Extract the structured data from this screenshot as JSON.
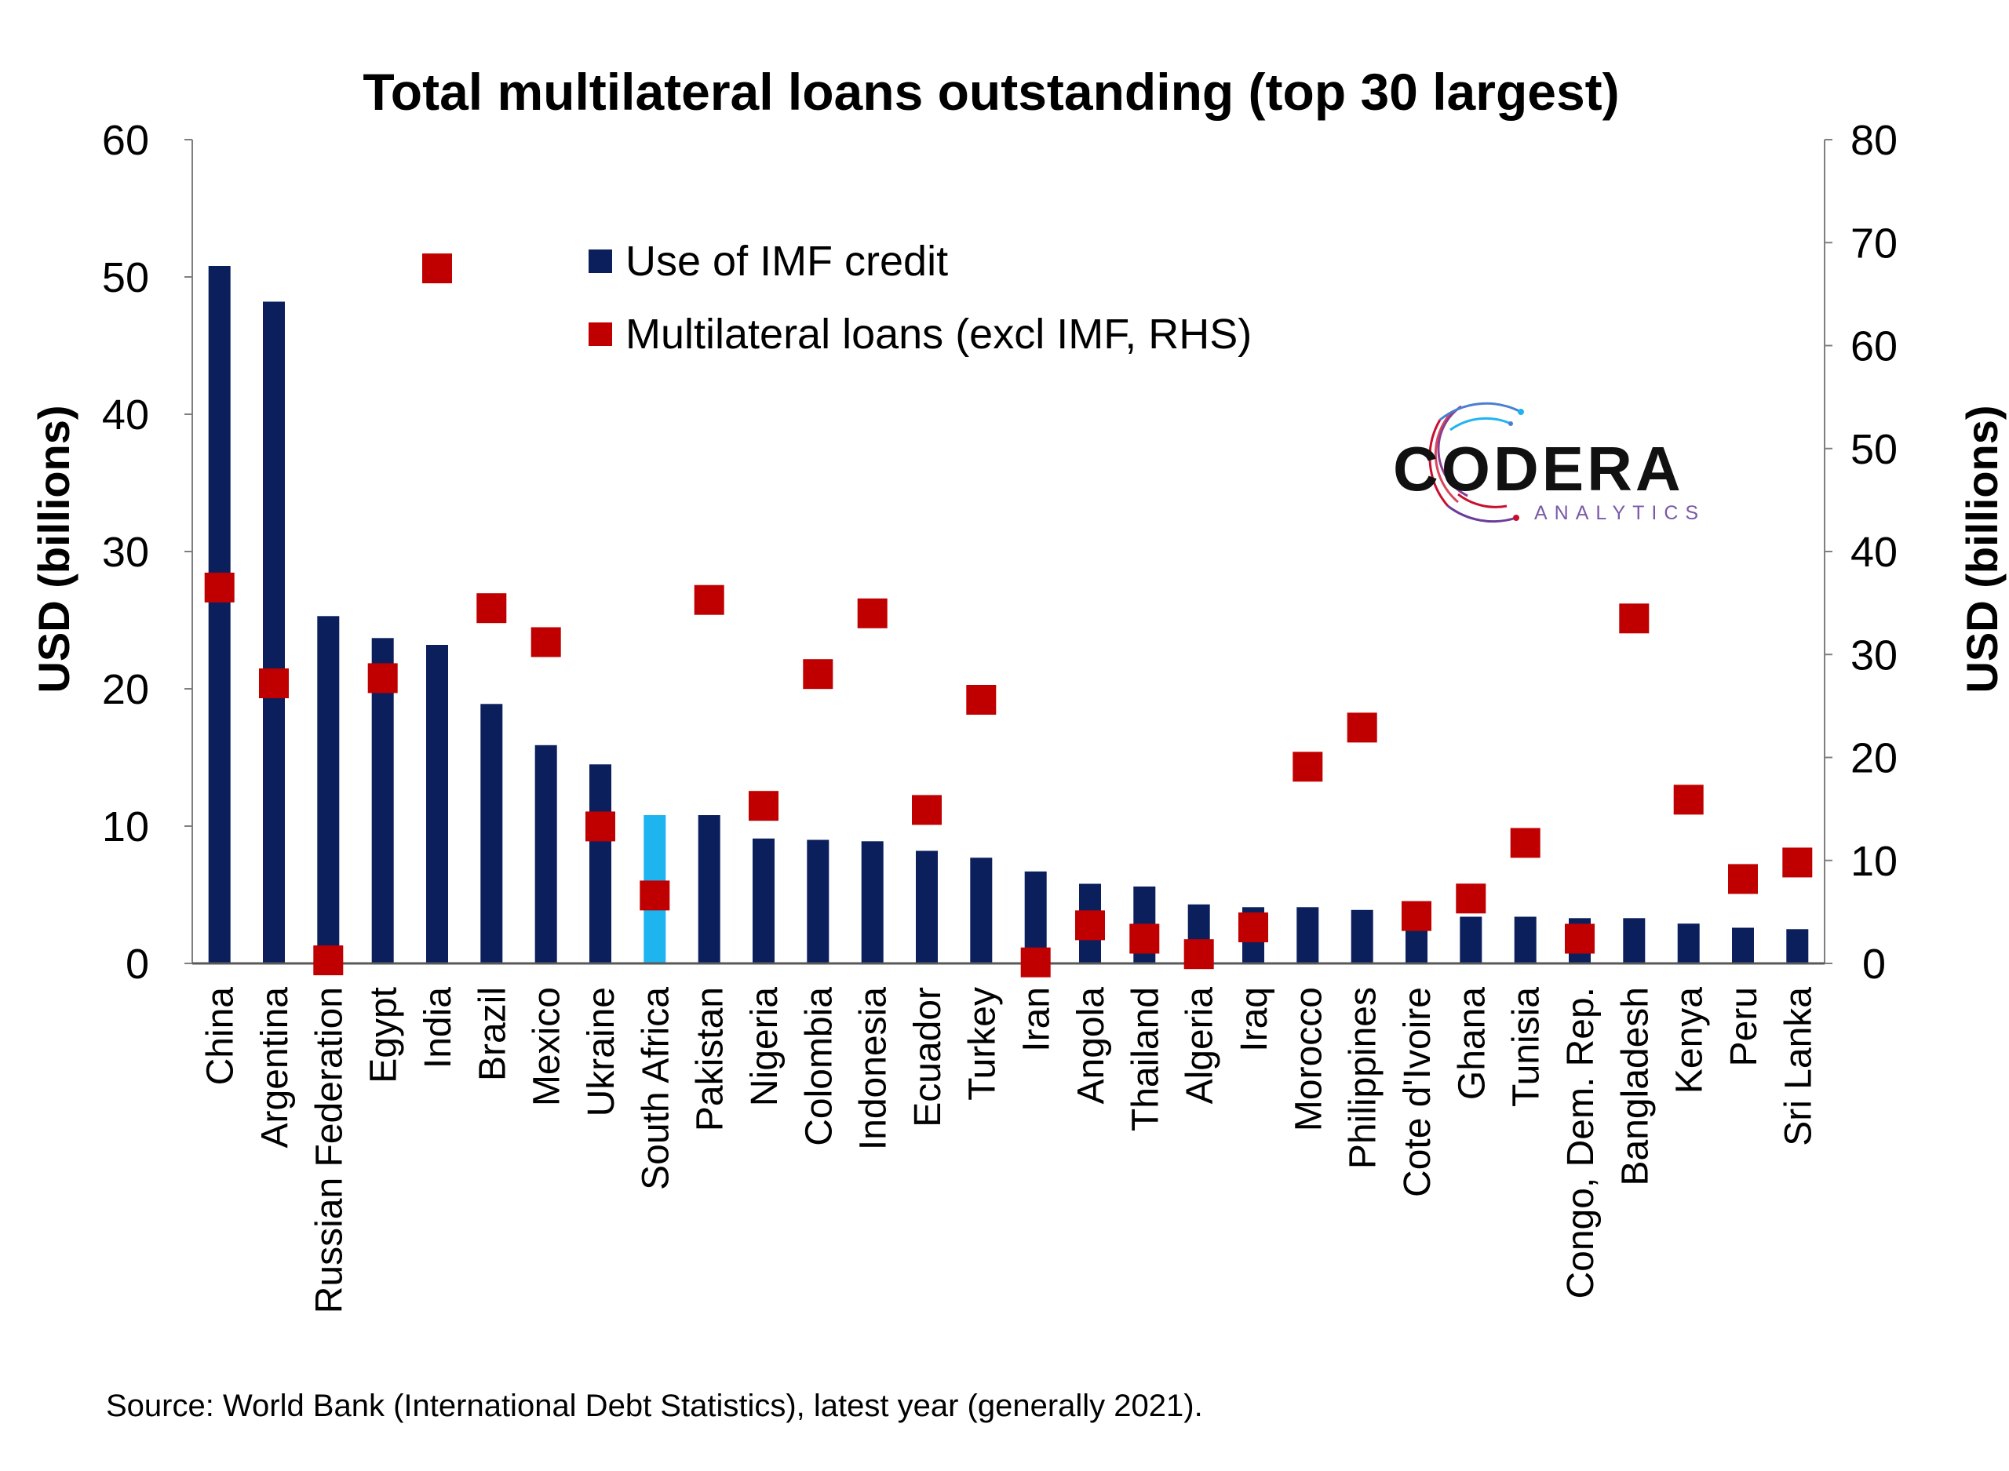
{
  "chart_data": {
    "type": "bar",
    "title": "Total multilateral loans outstanding (top 30 largest)",
    "ylabel_left": "USD (billions)",
    "ylabel_right": "USD (billions)",
    "ylim_left": [
      0,
      60
    ],
    "ylim_right": [
      0,
      80
    ],
    "yticks_left": [
      "0",
      "10",
      "20",
      "30",
      "40",
      "50",
      "60"
    ],
    "yticks_right": [
      "0",
      "10",
      "20",
      "30",
      "40",
      "50",
      "60",
      "70",
      "80"
    ],
    "grid": false,
    "legend_position": "top-center",
    "categories": [
      "China",
      "Argentina",
      "Russian Federation",
      "Egypt",
      "India",
      "Brazil",
      "Mexico",
      "Ukraine",
      "South Africa",
      "Pakistan",
      "Nigeria",
      "Colombia",
      "Indonesia",
      "Ecuador",
      "Turkey",
      "Iran",
      "Angola",
      "Thailand",
      "Algeria",
      "Iraq",
      "Morocco",
      "Philippines",
      "Cote d'Ivoire",
      "Ghana",
      "Tunisia",
      "Congo, Dem. Rep.",
      "Bangladesh",
      "Kenya",
      "Peru",
      "Sri Lanka"
    ],
    "highlight_category": "South Africa",
    "series": [
      {
        "name": "Use of IMF credit",
        "type": "bar",
        "axis": "left",
        "color": "#0b1f5c",
        "highlight_color": "#1eb4ef",
        "values": [
          50.8,
          48.2,
          25.3,
          23.7,
          23.2,
          18.9,
          15.9,
          14.5,
          10.8,
          10.8,
          9.1,
          9.0,
          8.9,
          8.2,
          7.7,
          6.7,
          5.8,
          5.6,
          4.3,
          4.1,
          4.1,
          3.9,
          3.6,
          3.4,
          3.4,
          3.3,
          3.3,
          2.9,
          2.6,
          2.5
        ]
      },
      {
        "name": "Multilateral loans (excl IMF, RHS)",
        "type": "scatter",
        "axis": "right",
        "color": "#c00000",
        "values": [
          36.5,
          27.2,
          0.3,
          27.7,
          67.5,
          34.5,
          31.2,
          13.3,
          6.6,
          35.3,
          15.3,
          28.1,
          34.0,
          14.9,
          25.6,
          0.1,
          3.7,
          2.4,
          0.9,
          3.5,
          19.1,
          22.9,
          4.6,
          6.3,
          11.7,
          2.4,
          33.5,
          15.9,
          8.2,
          9.8
        ]
      }
    ]
  },
  "logo": {
    "name": "CODERA",
    "tagline": "ANALYTICS",
    "colors": [
      "#c8102e",
      "#1eb4ef",
      "#6a3d9a"
    ]
  },
  "source": "Source: World Bank (International Debt Statistics), latest year (generally 2021)."
}
